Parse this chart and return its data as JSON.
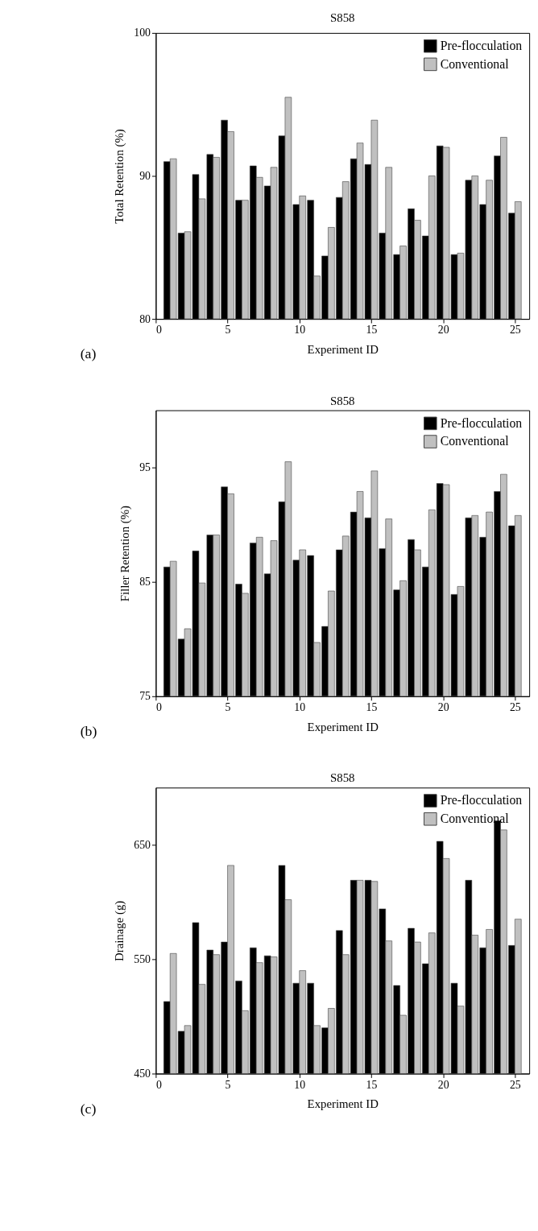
{
  "chart_data": [
    {
      "type": "bar",
      "title": "S858",
      "xlabel": "Experiment ID",
      "ylabel": "Total Retention (%)",
      "annotations": [
        "(a)"
      ],
      "x": [
        1,
        2,
        3,
        4,
        5,
        6,
        7,
        8,
        9,
        10,
        11,
        12,
        13,
        14,
        15,
        16,
        17,
        18,
        19,
        20,
        21,
        22,
        23,
        24,
        25
      ],
      "series": [
        {
          "name": "Pre-flocculation",
          "color": "#000000",
          "values": [
            91.0,
            86.0,
            90.1,
            91.5,
            93.9,
            88.3,
            90.7,
            89.3,
            92.8,
            88.0,
            88.3,
            84.4,
            88.5,
            91.2,
            90.8,
            86.0,
            84.5,
            87.7,
            85.8,
            92.1,
            84.5,
            89.7,
            88.0,
            91.4,
            87.4
          ]
        },
        {
          "name": "Conventional",
          "color": "#c0c0c0",
          "values": [
            91.2,
            86.1,
            88.4,
            91.3,
            93.1,
            88.3,
            89.9,
            90.6,
            95.5,
            88.6,
            83.0,
            86.4,
            89.6,
            92.3,
            93.9,
            90.6,
            85.1,
            86.9,
            90.0,
            92.0,
            84.6,
            90.0,
            89.7,
            92.7,
            88.2
          ]
        }
      ],
      "xlim": [
        0,
        26
      ],
      "xticks": [
        0,
        5,
        10,
        15,
        20,
        25
      ],
      "ylim": [
        80,
        100
      ],
      "yticks": [
        80,
        90,
        100
      ],
      "legend": "top right",
      "grid": false
    },
    {
      "type": "bar",
      "title": "S858",
      "xlabel": "Experiment ID",
      "ylabel": "Filler Retention (%)",
      "annotations": [
        "(b)"
      ],
      "x": [
        1,
        2,
        3,
        4,
        5,
        6,
        7,
        8,
        9,
        10,
        11,
        12,
        13,
        14,
        15,
        16,
        17,
        18,
        19,
        20,
        21,
        22,
        23,
        24,
        25
      ],
      "series": [
        {
          "name": "Pre-flocculation",
          "color": "#000000",
          "values": [
            86.3,
            80.0,
            87.7,
            89.1,
            93.3,
            84.8,
            88.4,
            85.7,
            92.0,
            86.9,
            87.3,
            81.1,
            87.8,
            91.1,
            90.6,
            87.9,
            84.3,
            88.7,
            86.3,
            93.6,
            83.9,
            90.6,
            88.9,
            92.9,
            89.9
          ]
        },
        {
          "name": "Conventional",
          "color": "#c0c0c0",
          "values": [
            86.8,
            80.9,
            84.9,
            89.1,
            92.7,
            84.0,
            88.9,
            88.6,
            95.5,
            87.8,
            79.7,
            84.2,
            89.0,
            92.9,
            94.7,
            90.5,
            85.1,
            87.8,
            91.3,
            93.5,
            84.6,
            90.8,
            91.1,
            94.4,
            90.8
          ]
        }
      ],
      "xlim": [
        0,
        26
      ],
      "xticks": [
        0,
        5,
        10,
        15,
        20,
        25
      ],
      "ylim": [
        75,
        100
      ],
      "yticks": [
        75,
        85,
        95
      ],
      "legend": "top right",
      "grid": false
    },
    {
      "type": "bar",
      "title": "S858",
      "xlabel": "Experiment ID",
      "ylabel": "Drainage (g)",
      "annotations": [
        "(c)"
      ],
      "x": [
        1,
        2,
        3,
        4,
        5,
        6,
        7,
        8,
        9,
        10,
        11,
        12,
        13,
        14,
        15,
        16,
        17,
        18,
        19,
        20,
        21,
        22,
        23,
        24,
        25
      ],
      "series": [
        {
          "name": "Pre-flocculation",
          "color": "#000000",
          "values": [
            513,
            487,
            582,
            558,
            565,
            531,
            560,
            553,
            632,
            529,
            529,
            490,
            575,
            619,
            619,
            594,
            527,
            577,
            546,
            653,
            529,
            619,
            560,
            671,
            562
          ]
        },
        {
          "name": "Conventional",
          "color": "#c0c0c0",
          "values": [
            555,
            492,
            528,
            554,
            632,
            505,
            547,
            552,
            602,
            540,
            492,
            507,
            554,
            619,
            618,
            566,
            501,
            565,
            573,
            638,
            509,
            571,
            576,
            663,
            585
          ]
        }
      ],
      "xlim": [
        0,
        26
      ],
      "xticks": [
        0,
        5,
        10,
        15,
        20,
        25
      ],
      "ylim": [
        450,
        700
      ],
      "yticks": [
        450,
        550,
        650
      ],
      "legend": "top right",
      "grid": false
    }
  ]
}
